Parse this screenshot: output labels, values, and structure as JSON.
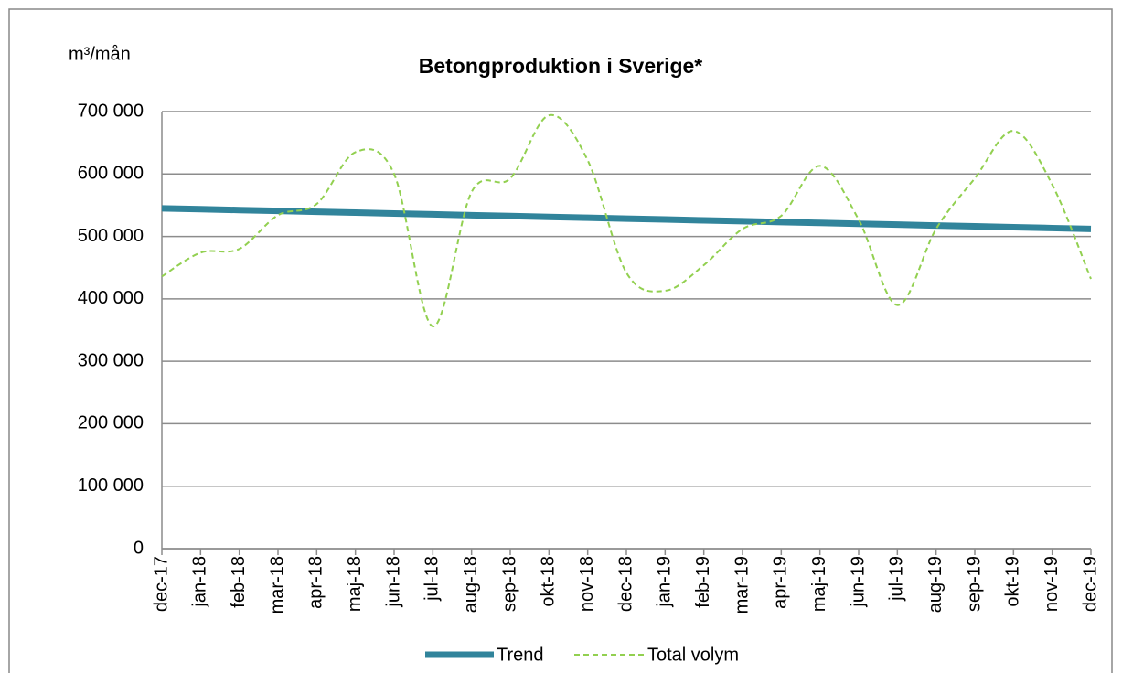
{
  "chart_data": {
    "type": "line",
    "title": "Betongproduktion i Sverige*",
    "y_label": "m³/mån",
    "categories": [
      "dec-17",
      "jan-18",
      "feb-18",
      "mar-18",
      "apr-18",
      "maj-18",
      "jun-18",
      "jul-18",
      "aug-18",
      "sep-18",
      "okt-18",
      "nov-18",
      "dec-18",
      "jan-19",
      "feb-19",
      "mar-19",
      "apr-19",
      "maj-19",
      "jun-19",
      "jul-19",
      "aug-19",
      "sep-19",
      "okt-19",
      "nov-19",
      "dec-19"
    ],
    "series": [
      {
        "name": "Trend",
        "color": "#31849b",
        "style": "solid",
        "values": [
          545000,
          543625,
          542250,
          540875,
          539500,
          538125,
          536750,
          535375,
          534000,
          532625,
          531250,
          529875,
          528500,
          527125,
          525750,
          524375,
          523000,
          521625,
          520250,
          518875,
          517500,
          516125,
          514750,
          513375,
          512000
        ]
      },
      {
        "name": "Total volym",
        "color": "#92d050",
        "style": "dashed",
        "values": [
          436000,
          474000,
          480000,
          534000,
          552000,
          635000,
          600000,
          356000,
          571000,
          593000,
          694000,
          622000,
          442000,
          413000,
          454000,
          512000,
          533000,
          613000,
          527000,
          390000,
          512000,
          593000,
          669000,
          583000,
          432000
        ]
      }
    ],
    "ylim": [
      0,
      700000
    ],
    "yticks": [
      0,
      {
        "value": 100000,
        "label": "100 000"
      },
      {
        "value": 200000,
        "label": "200 000"
      },
      {
        "value": 300000,
        "label": "300 000"
      },
      {
        "value": 400000,
        "label": "400 000"
      },
      {
        "value": 500000,
        "label": "500 000"
      },
      {
        "value": 600000,
        "label": "600 000"
      },
      {
        "value": 700000,
        "label": "700 000"
      }
    ],
    "grid": true,
    "legend": "bottom"
  }
}
